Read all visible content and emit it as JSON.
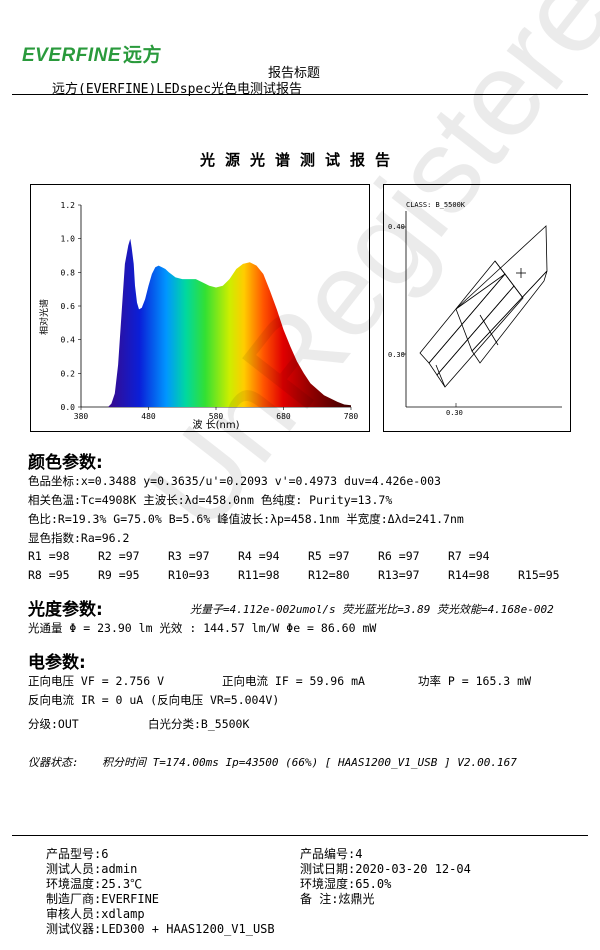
{
  "header": {
    "logo_text": "EVERFINE",
    "logo_cn": "远方",
    "report_label": "报告标题",
    "report_name": "远方(EVERFINE)LEDspec光色电测试报告"
  },
  "title": "光源光谱测试报告",
  "spectrum_chart": {
    "ylabel": "相对光谱",
    "xlabel": "波 长(nm)",
    "xticks": [
      "380",
      "480",
      "580",
      "680",
      "780"
    ],
    "yticks": [
      "0.0",
      "0.2",
      "0.4",
      "0.6",
      "0.8",
      "1.0",
      "1.2"
    ]
  },
  "chart_data": [
    {
      "type": "area",
      "title": "",
      "xlabel": "波 长(nm)",
      "ylabel": "相对光谱",
      "xlim": [
        380,
        780
      ],
      "ylim": [
        0,
        1.2
      ],
      "grid": false,
      "x": [
        420,
        425,
        430,
        435,
        440,
        445,
        450,
        453,
        455,
        458,
        460,
        463,
        466,
        470,
        475,
        480,
        485,
        490,
        495,
        500,
        505,
        510,
        520,
        530,
        540,
        550,
        560,
        570,
        580,
        590,
        600,
        610,
        620,
        630,
        640,
        650,
        660,
        670,
        680,
        690,
        700,
        710,
        720,
        740,
        760,
        770,
        780
      ],
      "values": [
        0,
        0.02,
        0.08,
        0.25,
        0.55,
        0.85,
        0.96,
        1.0,
        0.95,
        0.85,
        0.72,
        0.62,
        0.58,
        0.59,
        0.64,
        0.72,
        0.79,
        0.83,
        0.84,
        0.83,
        0.82,
        0.8,
        0.77,
        0.76,
        0.76,
        0.76,
        0.74,
        0.72,
        0.71,
        0.72,
        0.76,
        0.82,
        0.85,
        0.86,
        0.84,
        0.79,
        0.69,
        0.58,
        0.46,
        0.36,
        0.27,
        0.2,
        0.14,
        0.07,
        0.03,
        0.015,
        0.01
      ]
    },
    {
      "type": "diagram",
      "title": "CLASS: B_5500K",
      "yticks": [
        "0.40",
        "0.30"
      ],
      "xticks": [
        "0.30"
      ]
    }
  ],
  "cie": {
    "class_label": "CLASS: B_5500K",
    "y_top": "0.40",
    "y_bottom": "0.30",
    "x_tick": "0.30"
  },
  "color_params": {
    "heading": "颜色参数:",
    "line1": "色品坐标:x=0.3488  y=0.3635/u'=0.2093  v'=0.4973   duv=4.426e-003",
    "line2": "相关色温:Tc=4908K  主波长:λd=458.0nm  色纯度: Purity=13.7%",
    "line3": "色比:R=19.3% G=75.0% B=5.6%   峰值波长:λp=458.1nm  半宽度:Δλd=241.7nm",
    "line4": "显色指数:Ra=96.2",
    "r_row1": [
      "R1 =98",
      "R2 =97",
      "R3 =97",
      "R4 =94",
      "R5 =97",
      "R6 =97",
      "R7 =94"
    ],
    "r_row2": [
      "R8 =95",
      "R9 =95",
      "R10=93",
      "R11=98",
      "R12=80",
      "R13=97",
      "R14=98",
      "R15=95"
    ]
  },
  "photometric": {
    "heading": "光度参数:",
    "quantum_line": "光量子=4.112e-002umol/s 荧光蓝光比=3.89 荧光效能=4.168e-002",
    "flux_line": "光通量   Φ  = 23.90 lm   光效 : 144.57 lm/W  Φe  = 86.60 mW"
  },
  "electrical": {
    "heading": "电参数:",
    "line1a": "正向电压 VF = 2.756 V",
    "line1b": "正向电流 IF = 59.96 mA",
    "line1c": "功率 P = 165.3 mW",
    "line2": "反向电流 IR = 0 uA   (反向电压 VR=5.004V)",
    "grade": "分级:OUT",
    "white_class": "白光分类:B_5500K"
  },
  "instrument": {
    "label": "仪器状态:",
    "status": "积分时间 T=174.00ms  Ip=43500 (66%)   [ HAAS1200_V1_USB ] V2.00.167"
  },
  "watermark": "UnRegistered",
  "footer": {
    "model": "产品型号:6",
    "number": "产品编号:4",
    "tester": "测试人员:admin",
    "date": "测试日期:2020-03-20 12-04",
    "temp": "环境温度:25.3℃",
    "humidity": "环境湿度:65.0%",
    "maker": "制造厂商:EVERFINE",
    "remark": "备    注:炫鼎光",
    "reviewer": "审核人员:xdlamp",
    "instrument": "测试仪器:LED300 + HAAS1200_V1_USB"
  }
}
